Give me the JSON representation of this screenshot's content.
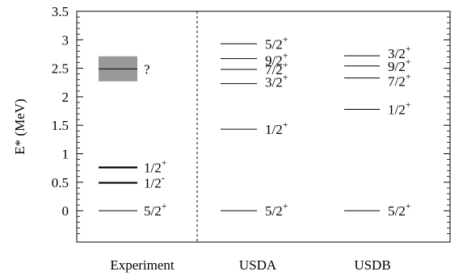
{
  "chart_data": {
    "type": "level-scheme",
    "ylabel": "E* (MeV)",
    "ylim": [
      -0.55,
      3.5
    ],
    "yticks": [
      "0",
      "0.5",
      "1",
      "1.5",
      "2",
      "2.5",
      "3",
      "3.5"
    ],
    "grid": false,
    "columns": [
      {
        "name": "Experiment",
        "levels": [
          {
            "energy": 0.0,
            "spin": "5/2",
            "parity": "+",
            "bold": false
          },
          {
            "energy": 0.49,
            "spin": "1/2",
            "parity": "-",
            "bold": true
          },
          {
            "energy": 0.76,
            "spin": "1/2",
            "parity": "+",
            "bold": true
          },
          {
            "energy": 2.49,
            "spin": "?",
            "parity": "",
            "bold": false,
            "uncertainty": [
              2.27,
              2.71
            ]
          }
        ]
      },
      {
        "name": "USDA",
        "levels": [
          {
            "energy": 0.0,
            "spin": "5/2",
            "parity": "+",
            "bold": false
          },
          {
            "energy": 1.43,
            "spin": "1/2",
            "parity": "+",
            "bold": false
          },
          {
            "energy": 2.23,
            "spin": "3/2",
            "parity": "+",
            "bold": false
          },
          {
            "energy": 2.48,
            "spin": "7/2",
            "parity": "+",
            "bold": false
          },
          {
            "energy": 2.67,
            "spin": "9/2",
            "parity": "+",
            "bold": false
          },
          {
            "energy": 2.93,
            "spin": "5/2",
            "parity": "+",
            "bold": false
          }
        ]
      },
      {
        "name": "USDB",
        "levels": [
          {
            "energy": 0.0,
            "spin": "5/2",
            "parity": "+",
            "bold": false
          },
          {
            "energy": 1.78,
            "spin": "1/2",
            "parity": "+",
            "bold": false
          },
          {
            "energy": 2.33,
            "spin": "7/2",
            "parity": "+",
            "bold": false
          },
          {
            "energy": 2.54,
            "spin": "9/2",
            "parity": "+",
            "bold": false
          },
          {
            "energy": 2.72,
            "spin": "3/2",
            "parity": "+",
            "bold": false
          }
        ]
      }
    ],
    "colors": {
      "line": "#000000",
      "uncertainty_band": "#999999",
      "divider": "#000000"
    }
  }
}
